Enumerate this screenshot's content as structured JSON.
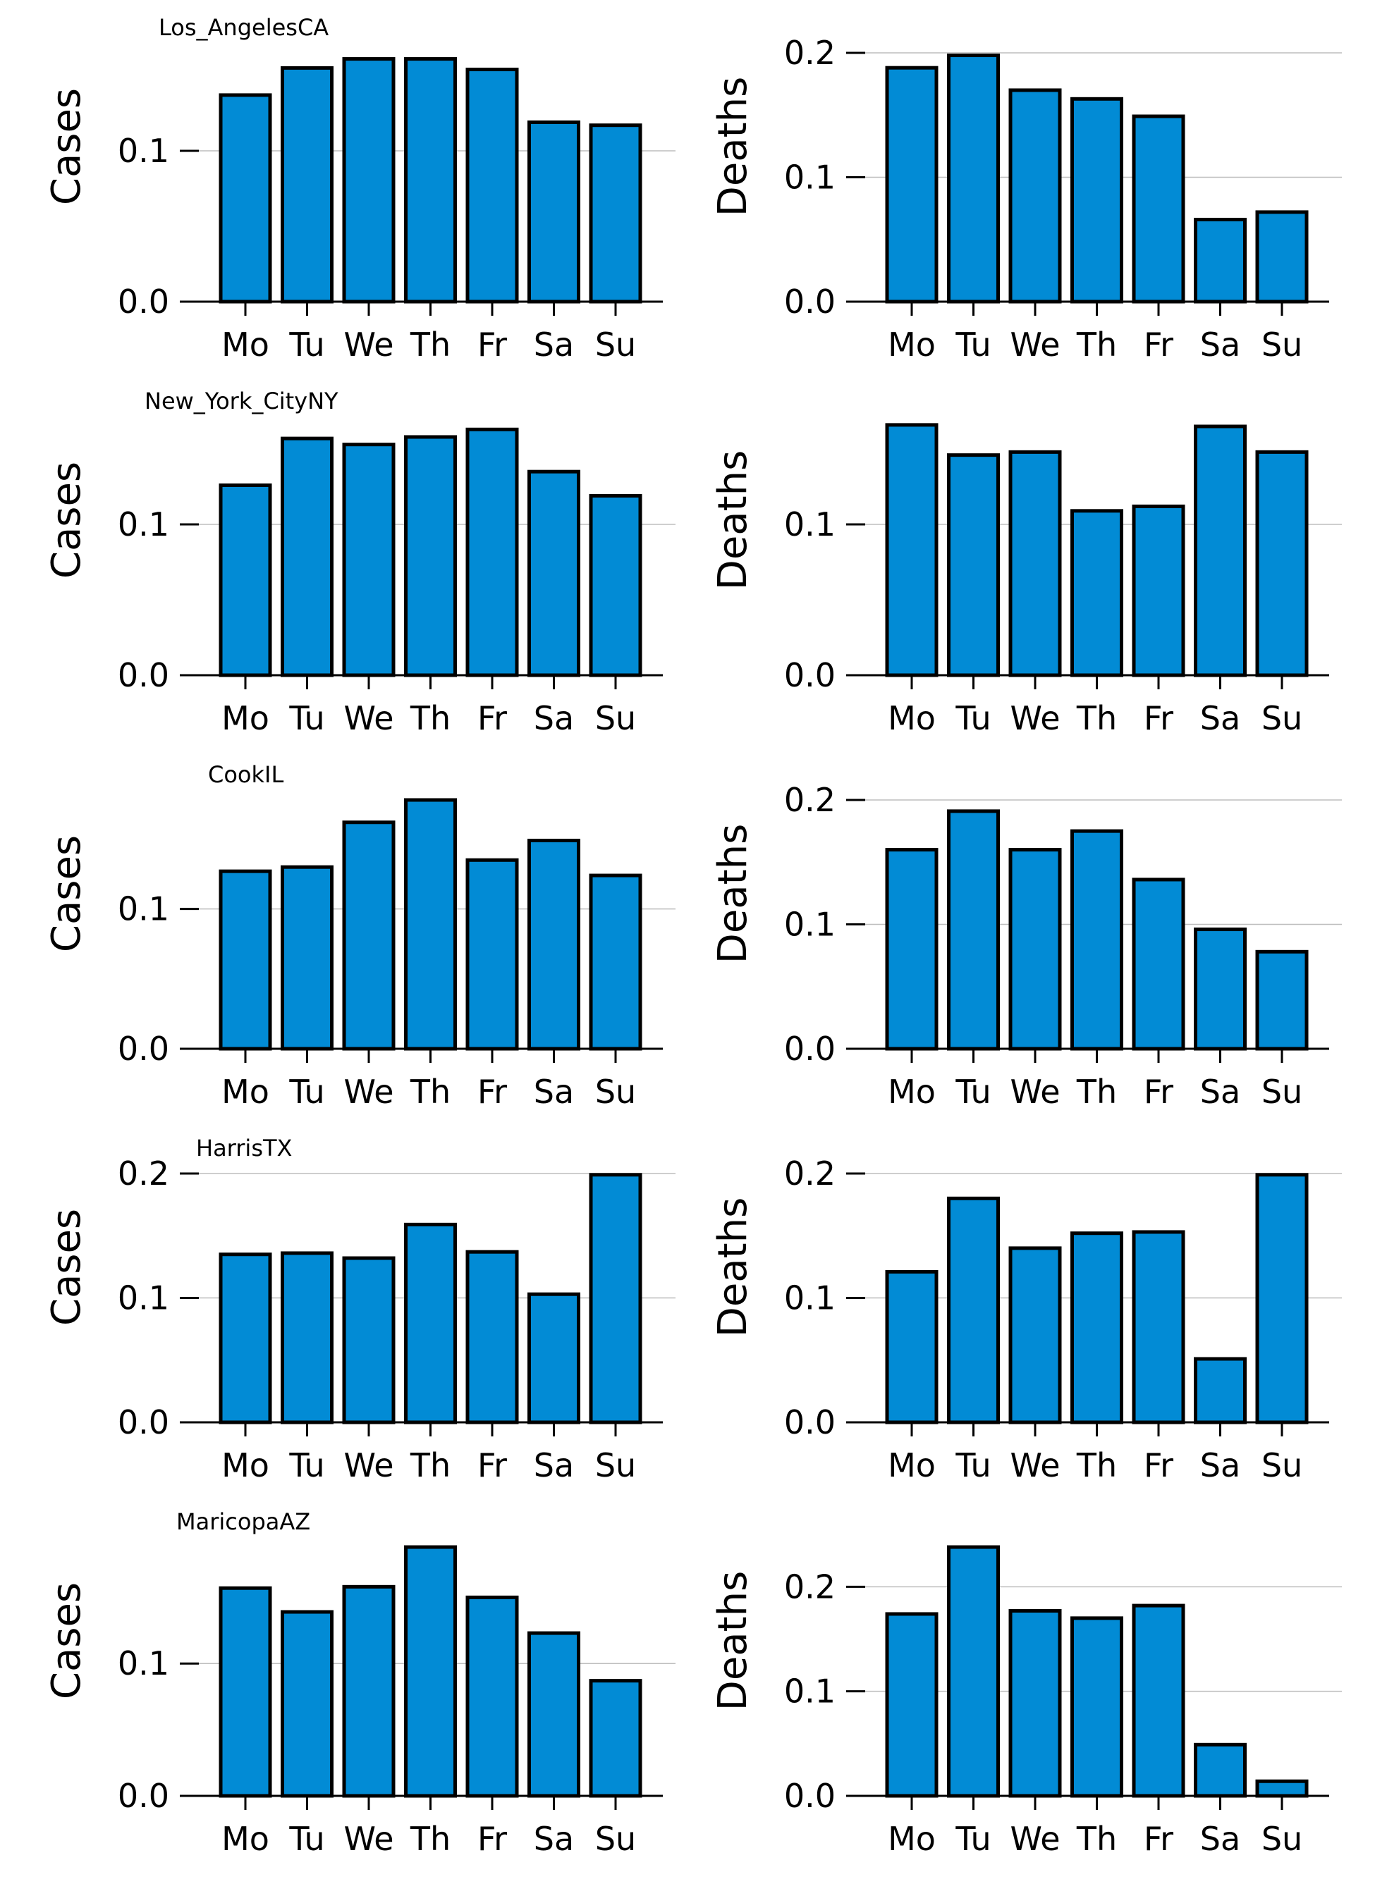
{
  "colors": {
    "bar_fill": "#028bd5",
    "bar_edge": "#000000",
    "grid": "#bdbdbd"
  },
  "chart_data": [
    {
      "type": "bar",
      "title": "Los_AngelesCA",
      "ylabel": "Cases",
      "categories": [
        "Mo",
        "Tu",
        "We",
        "Th",
        "Fr",
        "Sa",
        "Su"
      ],
      "values": [
        0.137,
        0.155,
        0.161,
        0.161,
        0.154,
        0.119,
        0.117
      ],
      "ylim": [
        0,
        0.165
      ],
      "yticks": [
        0.0,
        0.1
      ],
      "ytick_labels": [
        "0.0",
        "0.1"
      ],
      "grid": "y"
    },
    {
      "type": "bar",
      "title": "",
      "ylabel": "Deaths",
      "categories": [
        "Mo",
        "Tu",
        "We",
        "Th",
        "Fr",
        "Sa",
        "Su"
      ],
      "values": [
        0.188,
        0.198,
        0.17,
        0.163,
        0.149,
        0.066,
        0.072
      ],
      "ylim": [
        0,
        0.2
      ],
      "yticks": [
        0.0,
        0.1,
        0.2
      ],
      "ytick_labels": [
        "0.0",
        "0.1",
        "0.2"
      ],
      "grid": "y"
    },
    {
      "type": "bar",
      "title": "New_York_CityNY",
      "ylabel": "Cases",
      "categories": [
        "Mo",
        "Tu",
        "We",
        "Th",
        "Fr",
        "Sa",
        "Su"
      ],
      "values": [
        0.126,
        0.157,
        0.153,
        0.158,
        0.163,
        0.135,
        0.119
      ],
      "ylim": [
        0,
        0.165
      ],
      "yticks": [
        0.0,
        0.1
      ],
      "ytick_labels": [
        "0.0",
        "0.1"
      ],
      "grid": "y"
    },
    {
      "type": "bar",
      "title": "",
      "ylabel": "Deaths",
      "categories": [
        "Mo",
        "Tu",
        "We",
        "Th",
        "Fr",
        "Sa",
        "Su"
      ],
      "values": [
        0.166,
        0.146,
        0.148,
        0.109,
        0.112,
        0.165,
        0.148
      ],
      "ylim": [
        0,
        0.165
      ],
      "yticks": [
        0.0,
        0.1
      ],
      "ytick_labels": [
        "0.0",
        "0.1"
      ],
      "grid": "y"
    },
    {
      "type": "bar",
      "title": "CookIL",
      "ylabel": "Cases",
      "categories": [
        "Mo",
        "Tu",
        "We",
        "Th",
        "Fr",
        "Sa",
        "Su"
      ],
      "values": [
        0.127,
        0.13,
        0.162,
        0.178,
        0.135,
        0.149,
        0.124
      ],
      "ylim": [
        0,
        0.178
      ],
      "yticks": [
        0.0,
        0.1
      ],
      "ytick_labels": [
        "0.0",
        "0.1"
      ],
      "grid": "y"
    },
    {
      "type": "bar",
      "title": "",
      "ylabel": "Deaths",
      "categories": [
        "Mo",
        "Tu",
        "We",
        "Th",
        "Fr",
        "Sa",
        "Su"
      ],
      "values": [
        0.16,
        0.191,
        0.16,
        0.175,
        0.136,
        0.096,
        0.078
      ],
      "ylim": [
        0,
        0.2
      ],
      "yticks": [
        0.0,
        0.1,
        0.2
      ],
      "ytick_labels": [
        "0.0",
        "0.1",
        "0.2"
      ],
      "grid": "y"
    },
    {
      "type": "bar",
      "title": "HarrisTX",
      "ylabel": "Cases",
      "categories": [
        "Mo",
        "Tu",
        "We",
        "Th",
        "Fr",
        "Sa",
        "Su"
      ],
      "values": [
        0.135,
        0.136,
        0.132,
        0.159,
        0.137,
        0.103,
        0.199
      ],
      "ylim": [
        0,
        0.2
      ],
      "yticks": [
        0.0,
        0.1,
        0.2
      ],
      "ytick_labels": [
        "0.0",
        "0.1",
        "0.2"
      ],
      "grid": "y"
    },
    {
      "type": "bar",
      "title": "",
      "ylabel": "Deaths",
      "categories": [
        "Mo",
        "Tu",
        "We",
        "Th",
        "Fr",
        "Sa",
        "Su"
      ],
      "values": [
        0.121,
        0.18,
        0.14,
        0.152,
        0.153,
        0.051,
        0.199
      ],
      "ylim": [
        0,
        0.2
      ],
      "yticks": [
        0.0,
        0.1,
        0.2
      ],
      "ytick_labels": [
        "0.0",
        "0.1",
        "0.2"
      ],
      "grid": "y"
    },
    {
      "type": "bar",
      "title": "MaricopaAZ",
      "ylabel": "Cases",
      "categories": [
        "Mo",
        "Tu",
        "We",
        "Th",
        "Fr",
        "Sa",
        "Su"
      ],
      "values": [
        0.157,
        0.139,
        0.158,
        0.188,
        0.15,
        0.123,
        0.087
      ],
      "ylim": [
        0,
        0.188
      ],
      "yticks": [
        0.0,
        0.1
      ],
      "ytick_labels": [
        "0.0",
        "0.1"
      ],
      "grid": "y"
    },
    {
      "type": "bar",
      "title": "",
      "ylabel": "Deaths",
      "categories": [
        "Mo",
        "Tu",
        "We",
        "Th",
        "Fr",
        "Sa",
        "Su"
      ],
      "values": [
        0.174,
        0.238,
        0.177,
        0.17,
        0.182,
        0.049,
        0.014
      ],
      "ylim": [
        0,
        0.238
      ],
      "yticks": [
        0.0,
        0.1,
        0.2
      ],
      "ytick_labels": [
        "0.0",
        "0.1",
        "0.2"
      ],
      "grid": "y"
    }
  ]
}
